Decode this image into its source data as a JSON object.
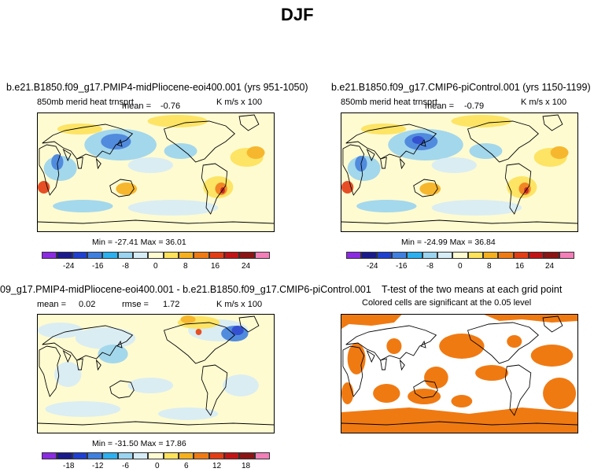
{
  "figure": {
    "title": "DJF"
  },
  "panels": [
    {
      "title": "b.e21.B1850.f09_g17.PMIP4-midPliocene-eoi400.001 (yrs 951-1050)",
      "variable": "850mb merid heat trnsprt",
      "mean_label": "mean =",
      "mean_value": "-0.76",
      "units": "K m/s x 100",
      "min_max": "Min = -27.41 Max =  36.01",
      "colorbar_ticks": [
        "-24",
        "-16",
        "-8",
        "0",
        "8",
        "16",
        "24"
      ]
    },
    {
      "title": "b.e21.B1850.f09_g17.CMIP6-piControl.001 (yrs 1150-1199)",
      "variable": "850mb merid heat trnsprt",
      "mean_label": "mean =",
      "mean_value": "-0.79",
      "units": "K m/s x 100",
      "min_max": "Min = -24.99 Max =  36.84",
      "colorbar_ticks": [
        "-24",
        "-16",
        "-8",
        "0",
        "8",
        "16",
        "24"
      ]
    },
    {
      "title": "09_g17.PMIP4-midPliocene-eoi400.001 - b.e21.B1850.f09_g17.CMIP6-piControl.001",
      "mean_label": "mean =",
      "mean_value": "0.02",
      "rmse_label": "rmse =",
      "rmse_value": "1.72",
      "units": "K m/s x 100",
      "min_max": "Min = -31.50 Max =  17.86",
      "colorbar_ticks": [
        "-18",
        "-12",
        "-6",
        "0",
        "6",
        "12",
        "18"
      ]
    },
    {
      "title": "T-test of the two means at each grid point",
      "note": "Colored cells are significant at the 0.05 level"
    }
  ],
  "colors": {
    "palette": [
      "#8b2be2",
      "#1a1a8c",
      "#1f3fd1",
      "#3f7fe0",
      "#2cb0f0",
      "#9ad4f0",
      "#d6ecf6",
      "#fffbd1",
      "#fde25a",
      "#f6b01d",
      "#f07a12",
      "#e43d14",
      "#c21416",
      "#8c1414",
      "#f27fb7"
    ],
    "significance": "#f07a12"
  }
}
